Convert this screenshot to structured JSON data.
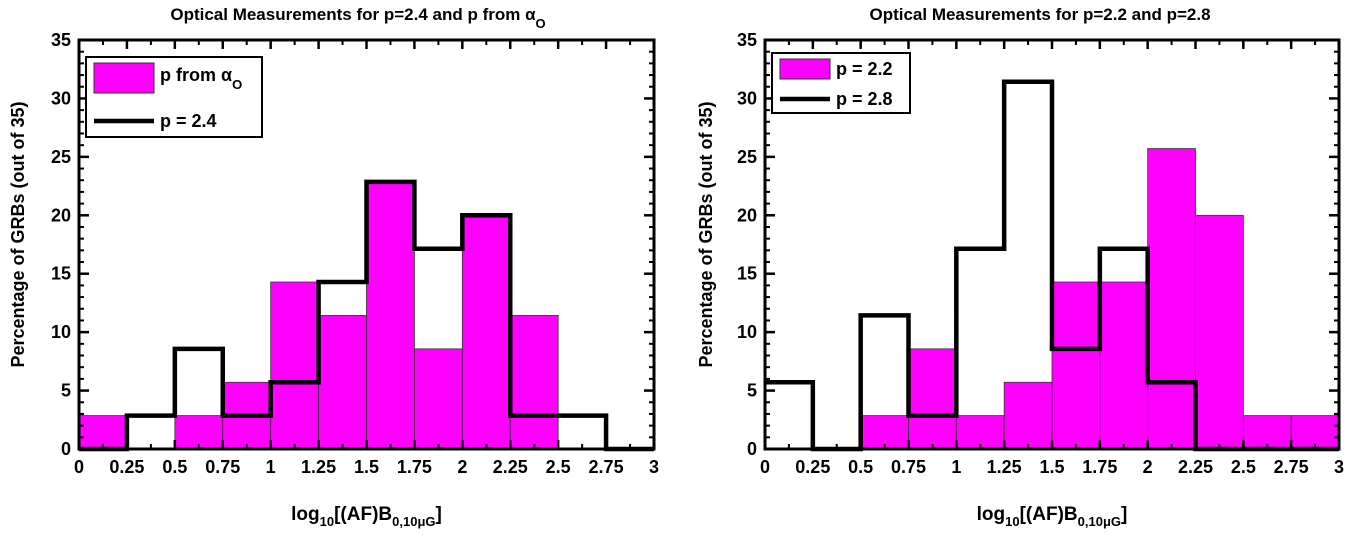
{
  "chart_data": [
    {
      "type": "bar",
      "title": "Optical Measurements for p=2.4 and p from α",
      "title_sub": "O",
      "xlabel": "log",
      "xlabel_parts": [
        "10",
        "[(AF)B",
        "0,10μG",
        "]"
      ],
      "ylabel": "Percentage of GRBs (out of 35)",
      "xlim": [
        0,
        3
      ],
      "ylim": [
        0,
        35
      ],
      "xticks": [
        "0",
        "0.25",
        "0.5",
        "0.75",
        "1",
        "1.25",
        "1.5",
        "1.75",
        "2",
        "2.25",
        "2.5",
        "2.75",
        "3"
      ],
      "yticks": [
        "0",
        "5",
        "10",
        "15",
        "20",
        "25",
        "30",
        "35"
      ],
      "bin_edges": [
        0,
        0.25,
        0.5,
        0.75,
        1,
        1.25,
        1.5,
        1.75,
        2,
        2.25,
        2.5,
        2.75,
        3
      ],
      "legend_position": "top-left",
      "series": [
        {
          "name": "p from α",
          "name_sub": "O",
          "style": "filled",
          "values": [
            2.86,
            0,
            2.86,
            5.71,
            14.29,
            11.43,
            22.86,
            8.57,
            20.0,
            11.43,
            0,
            0
          ]
        },
        {
          "name": "p = 2.4",
          "style": "step",
          "values": [
            0,
            2.86,
            8.57,
            2.86,
            5.71,
            14.29,
            22.86,
            17.14,
            20.0,
            2.86,
            2.86,
            0
          ]
        }
      ],
      "colors": {
        "fill": "#ff00ff",
        "line": "#000000"
      },
      "grid": false
    },
    {
      "type": "bar",
      "title": "Optical Measurements for p=2.2 and p=2.8",
      "xlabel": "log",
      "xlabel_parts": [
        "10",
        "[(AF)B",
        "0,10μG",
        "]"
      ],
      "ylabel": "Percentage of GRBs (out of 35)",
      "xlim": [
        0,
        3
      ],
      "ylim": [
        0,
        35
      ],
      "xticks": [
        "0",
        "0.25",
        "0.5",
        "0.75",
        "1",
        "1.25",
        "1.5",
        "1.75",
        "2",
        "2.25",
        "2.5",
        "2.75",
        "3"
      ],
      "yticks": [
        "0",
        "5",
        "10",
        "15",
        "20",
        "25",
        "30",
        "35"
      ],
      "bin_edges": [
        0,
        0.25,
        0.5,
        0.75,
        1,
        1.25,
        1.5,
        1.75,
        2,
        2.25,
        2.5,
        2.75,
        3
      ],
      "legend_position": "top-left",
      "series": [
        {
          "name": "p = 2.2",
          "style": "filled",
          "values": [
            0,
            0,
            2.86,
            8.57,
            2.86,
            5.71,
            14.29,
            14.29,
            25.71,
            20.0,
            2.86,
            2.86
          ]
        },
        {
          "name": "p = 2.8",
          "style": "step",
          "values": [
            5.71,
            0,
            11.43,
            2.86,
            17.14,
            31.43,
            8.57,
            17.14,
            5.71,
            0,
            0,
            0
          ]
        }
      ],
      "colors": {
        "fill": "#ff00ff",
        "line": "#000000"
      },
      "grid": false
    }
  ]
}
